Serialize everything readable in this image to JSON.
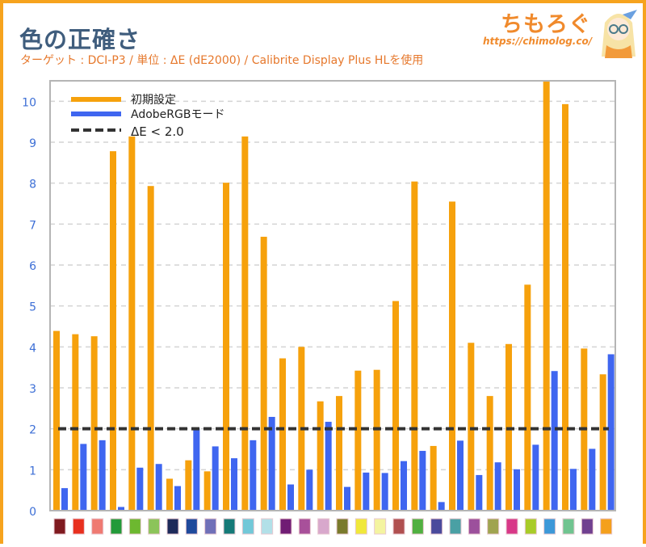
{
  "header": {
    "title": "色の正確さ",
    "subtitle": "ターゲット : DCI-P3 / 単位 : ΔE (dE2000) / Calibrite Display Plus HLを使用",
    "logo_text": "ちもろぐ",
    "logo_url": "https://chimolog.co/"
  },
  "colors": {
    "orange": "#f6a10c",
    "blue": "#3f66f0",
    "threshold": "#333333",
    "axis_label": "#3d6fd6"
  },
  "chart_data": {
    "type": "bar",
    "title": "",
    "xlabel": "",
    "ylabel": "",
    "ylim": [
      0,
      10.5
    ],
    "yticks": [
      0,
      1,
      2,
      3,
      4,
      5,
      6,
      7,
      8,
      9,
      10
    ],
    "grid": true,
    "legend_position": "top-left",
    "categories_swatch_colors": [
      "#7f1a1f",
      "#e8301e",
      "#ef7a72",
      "#239a3a",
      "#6db830",
      "#8cc45a",
      "#1d2a5a",
      "#1f4a9c",
      "#7070b8",
      "#157a78",
      "#72c8d8",
      "#b2e0e8",
      "#701c74",
      "#a8509a",
      "#d8a8cc",
      "#7a7a2c",
      "#f0e83a",
      "#f4f4a0",
      "#b05050",
      "#50b040",
      "#4a4a9c",
      "#4aa0a4",
      "#9c509c",
      "#a0a450",
      "#d83888",
      "#a8cc28",
      "#3c98d8",
      "#70c490",
      "#704090",
      "#f4a01c"
    ],
    "series": [
      {
        "name": "初期設定",
        "color": "#f6a10c",
        "values": [
          4.39,
          4.31,
          4.26,
          8.78,
          9.14,
          7.93,
          0.78,
          1.23,
          0.96,
          8.01,
          9.14,
          6.69,
          3.72,
          4.0,
          2.67,
          2.8,
          3.42,
          3.44,
          5.12,
          8.04,
          1.58,
          7.55,
          4.1,
          2.8,
          4.07,
          5.52,
          10.5,
          9.93,
          3.96,
          3.33
        ]
      },
      {
        "name": "AdobeRGBモード",
        "color": "#3f66f0",
        "values": [
          0.55,
          1.63,
          1.72,
          0.09,
          1.05,
          1.14,
          0.6,
          2.01,
          1.57,
          1.28,
          1.72,
          2.29,
          0.64,
          1.0,
          2.17,
          0.58,
          0.93,
          0.92,
          1.21,
          1.46,
          0.21,
          1.71,
          0.87,
          1.18,
          1.01,
          1.61,
          3.41,
          1.02,
          1.51,
          3.82
        ]
      }
    ],
    "threshold": {
      "name": "ΔE < 2.0",
      "value": 2.0
    }
  }
}
